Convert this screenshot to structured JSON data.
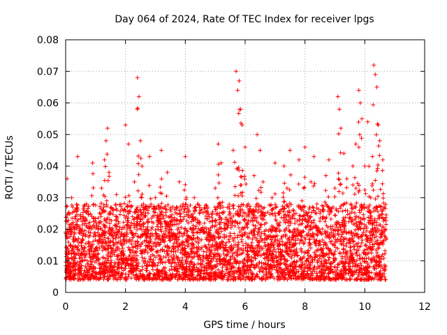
{
  "chart_data": {
    "type": "scatter",
    "title": "Day 064 of 2024, Rate Of TEC Index for receiver lpgs",
    "xlabel": "GPS time / hours",
    "ylabel": "ROTI / TECUs",
    "xlim": [
      0,
      12
    ],
    "ylim": [
      0,
      0.08
    ],
    "x_ticks": [
      0,
      2,
      4,
      6,
      8,
      10,
      12
    ],
    "y_ticks": [
      0,
      0.01,
      0.02,
      0.03,
      0.04,
      0.05,
      0.06,
      0.07,
      0.08
    ],
    "x_tick_labels": [
      "0",
      "2",
      "4",
      "6",
      "8",
      "10",
      "12"
    ],
    "y_tick_labels": [
      "0",
      "0.01",
      "0.02",
      "0.03",
      "0.04",
      "0.05",
      "0.06",
      "0.07",
      "0.08"
    ],
    "grid": true,
    "marker": "+",
    "color": "#ff0000",
    "series": [
      {
        "name": "ROTI",
        "x": [
          0.05,
          0.1,
          0.15,
          0.2,
          0.3,
          0.4,
          0.5,
          0.6,
          0.7,
          0.8,
          0.9,
          1.0,
          1.1,
          1.2,
          1.3,
          1.35,
          1.4,
          1.45,
          1.5,
          1.6,
          1.7,
          1.8,
          1.9,
          2.0,
          2.1,
          2.2,
          2.3,
          2.4,
          2.45,
          2.5,
          2.55,
          2.6,
          2.7,
          2.8,
          2.9,
          3.0,
          3.1,
          3.2,
          3.3,
          3.4,
          3.5,
          3.6,
          3.7,
          3.8,
          3.9,
          4.0,
          4.1,
          4.2,
          4.3,
          4.4,
          4.5,
          4.6,
          4.7,
          4.8,
          4.9,
          5.0,
          5.1,
          5.2,
          5.3,
          5.4,
          5.5,
          5.6,
          5.7,
          5.75,
          5.8,
          5.85,
          5.9,
          6.0,
          6.1,
          6.2,
          6.3,
          6.4,
          6.5,
          6.6,
          6.7,
          6.8,
          6.9,
          7.0,
          7.1,
          7.2,
          7.3,
          7.4,
          7.5,
          7.6,
          7.7,
          7.8,
          7.9,
          8.0,
          8.1,
          8.2,
          8.3,
          8.4,
          8.5,
          8.6,
          8.7,
          8.8,
          8.9,
          9.0,
          9.1,
          9.15,
          9.2,
          9.3,
          9.4,
          9.5,
          9.6,
          9.7,
          9.8,
          9.85,
          9.9,
          10.0,
          10.1,
          10.2,
          10.3,
          10.35,
          10.4,
          10.45,
          10.5,
          10.6,
          10.65,
          10.7
        ],
        "y": [
          0.036,
          0.025,
          0.015,
          0.03,
          0.011,
          0.043,
          0.02,
          0.013,
          0.028,
          0.018,
          0.041,
          0.012,
          0.022,
          0.033,
          0.042,
          0.048,
          0.052,
          0.038,
          0.025,
          0.015,
          0.031,
          0.02,
          0.01,
          0.053,
          0.047,
          0.022,
          0.035,
          0.068,
          0.062,
          0.048,
          0.04,
          0.028,
          0.018,
          0.043,
          0.012,
          0.03,
          0.024,
          0.045,
          0.016,
          0.038,
          0.02,
          0.013,
          0.027,
          0.035,
          0.011,
          0.043,
          0.022,
          0.017,
          0.03,
          0.013,
          0.026,
          0.019,
          0.011,
          0.024,
          0.015,
          0.033,
          0.047,
          0.041,
          0.022,
          0.012,
          0.018,
          0.045,
          0.07,
          0.064,
          0.067,
          0.058,
          0.053,
          0.046,
          0.028,
          0.019,
          0.037,
          0.05,
          0.045,
          0.035,
          0.022,
          0.014,
          0.03,
          0.041,
          0.025,
          0.017,
          0.04,
          0.033,
          0.045,
          0.018,
          0.025,
          0.042,
          0.029,
          0.046,
          0.021,
          0.035,
          0.043,
          0.028,
          0.016,
          0.024,
          0.037,
          0.042,
          0.018,
          0.033,
          0.062,
          0.058,
          0.052,
          0.044,
          0.036,
          0.025,
          0.04,
          0.047,
          0.064,
          0.06,
          0.055,
          0.04,
          0.054,
          0.03,
          0.072,
          0.069,
          0.065,
          0.053,
          0.048,
          0.042,
          0.027,
          0.02
        ]
      }
    ]
  }
}
